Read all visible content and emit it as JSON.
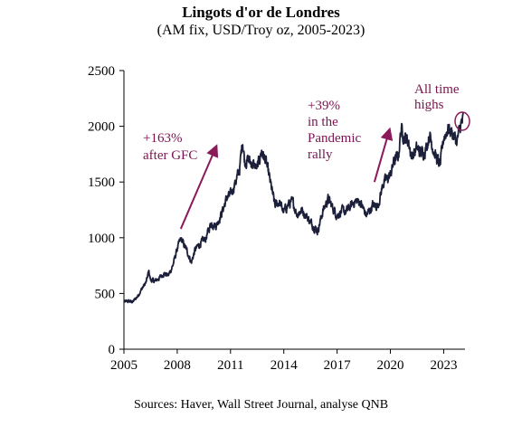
{
  "chart_data": {
    "type": "line",
    "title": "Lingots d'or de Londres",
    "subtitle": "(AM fix, USD/Troy oz, 2005-2023)",
    "xlabel": "",
    "ylabel": "",
    "xlim": [
      2005,
      2024.2
    ],
    "ylim": [
      0,
      2500
    ],
    "x_ticks": [
      2005,
      2008,
      2011,
      2014,
      2017,
      2020,
      2023
    ],
    "y_ticks": [
      0,
      500,
      1000,
      1500,
      2000,
      2500
    ],
    "grid": false,
    "legend": "none",
    "series": [
      {
        "color": "#1b1f3a",
        "x": [
          2005.0,
          2005.25,
          2005.5,
          2005.75,
          2006.0,
          2006.25,
          2006.4,
          2006.5,
          2006.75,
          2007.0,
          2007.25,
          2007.5,
          2007.75,
          2008.0,
          2008.2,
          2008.5,
          2008.8,
          2009.0,
          2009.3,
          2009.6,
          2009.9,
          2010.2,
          2010.5,
          2010.8,
          2011.0,
          2011.3,
          2011.5,
          2011.68,
          2011.8,
          2012.0,
          2012.3,
          2012.5,
          2012.75,
          2013.0,
          2013.3,
          2013.5,
          2013.75,
          2014.0,
          2014.25,
          2014.5,
          2014.75,
          2015.0,
          2015.25,
          2015.5,
          2015.9,
          2016.2,
          2016.5,
          2016.75,
          2017.0,
          2017.25,
          2017.5,
          2017.75,
          2018.0,
          2018.3,
          2018.65,
          2019.0,
          2019.3,
          2019.6,
          2020.0,
          2020.2,
          2020.45,
          2020.6,
          2020.8,
          2021.0,
          2021.2,
          2021.5,
          2021.75,
          2022.0,
          2022.2,
          2022.5,
          2022.8,
          2023.0,
          2023.25,
          2023.5,
          2023.75,
          2023.95,
          2024.1
        ],
        "y": [
          425,
          430,
          425,
          470,
          540,
          600,
          700,
          620,
          610,
          640,
          680,
          660,
          750,
          900,
          990,
          900,
          780,
          890,
          950,
          990,
          1130,
          1110,
          1220,
          1360,
          1380,
          1510,
          1600,
          1880,
          1680,
          1700,
          1650,
          1620,
          1780,
          1680,
          1450,
          1290,
          1320,
          1230,
          1300,
          1320,
          1210,
          1250,
          1200,
          1140,
          1060,
          1240,
          1350,
          1270,
          1200,
          1240,
          1230,
          1280,
          1330,
          1320,
          1200,
          1290,
          1290,
          1490,
          1560,
          1690,
          1730,
          1980,
          1900,
          1870,
          1730,
          1800,
          1760,
          1800,
          1930,
          1750,
          1650,
          1900,
          1980,
          1940,
          1860,
          2010,
          2060
        ]
      }
    ],
    "annotations": {
      "gfc": [
        "+163%",
        "after GFC"
      ],
      "pandemic": [
        "+39%",
        "in the",
        "Pandemic",
        "rally"
      ],
      "ath": [
        "All time",
        "highs"
      ]
    },
    "annotation_color": "#8b1a5a"
  },
  "source": "Sources: Haver, Wall Street Journal, analyse QNB"
}
